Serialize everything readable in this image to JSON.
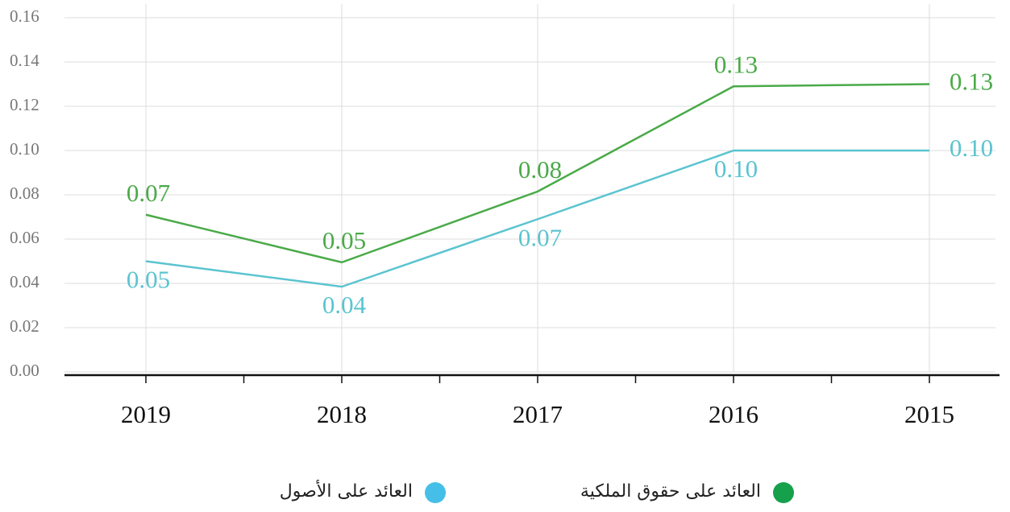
{
  "chart_data": {
    "type": "line",
    "categories": [
      "2019",
      "2018",
      "2017",
      "2016",
      "2015"
    ],
    "series": [
      {
        "name": "العائد على حقوق الملكية",
        "color": "#4aaa48",
        "marker_color": "#16a04c",
        "values": [
          0.071,
          0.0495,
          0.0815,
          0.129,
          0.13
        ],
        "value_labels": [
          "0.07",
          "0.05",
          "0.08",
          "0.13",
          "0.13"
        ]
      },
      {
        "name": "العائد على الأصول",
        "color": "#5bc4d0",
        "marker_color": "#45bfe8",
        "values": [
          0.05,
          0.0385,
          0.069,
          0.1,
          0.1
        ],
        "value_labels": [
          "0.05",
          "0.04",
          "0.07",
          "0.10",
          "0.10"
        ]
      }
    ],
    "ylim": [
      0,
      0.16
    ],
    "yticks": [
      {
        "value": 0,
        "label": "0.00"
      },
      {
        "value": 0.02,
        "label": "0.02"
      },
      {
        "value": 0.04,
        "label": "0.04"
      },
      {
        "value": 0.06,
        "label": "0.06"
      },
      {
        "value": 0.08,
        "label": "0.08"
      },
      {
        "value": 0.1,
        "label": "0.10"
      },
      {
        "value": 0.12,
        "label": "0.12"
      },
      {
        "value": 0.14,
        "label": "0.14"
      },
      {
        "value": 0.16,
        "label": "0.16"
      }
    ],
    "grid": true,
    "legend": "bottom"
  }
}
